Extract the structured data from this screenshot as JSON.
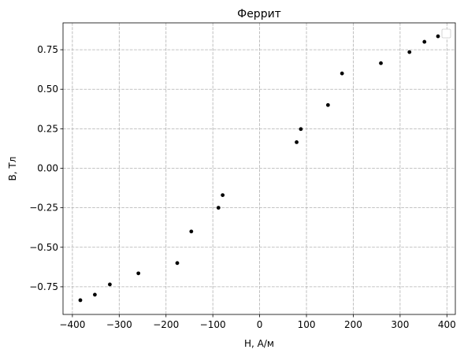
{
  "chart_data": {
    "type": "scatter",
    "title": "Феррит",
    "xlabel": "H, А/м",
    "ylabel": "B, Тл",
    "xlim": [
      -420,
      418
    ],
    "ylim": [
      -0.925,
      0.92
    ],
    "x_ticks": [
      -400,
      -300,
      -200,
      -100,
      0,
      100,
      200,
      300,
      400
    ],
    "x_tick_labels": [
      "−400",
      "−300",
      "−200",
      "−100",
      "0",
      "100",
      "200",
      "300",
      "400"
    ],
    "y_ticks": [
      -0.75,
      -0.5,
      -0.25,
      0,
      0.25,
      0.5,
      0.75
    ],
    "y_tick_labels": [
      "−0.75",
      "−0.50",
      "−0.25",
      "0.00",
      "0.25",
      "0.50",
      "0.75"
    ],
    "grid": true,
    "legend_placement": "upper right",
    "marker_color": "#000000",
    "series": [
      {
        "points": [
          {
            "x": -383,
            "y": -0.835
          },
          {
            "x": -352,
            "y": -0.8
          },
          {
            "x": -320,
            "y": -0.735
          },
          {
            "x": -259,
            "y": -0.665
          },
          {
            "x": -176,
            "y": -0.6
          },
          {
            "x": -146,
            "y": -0.4
          },
          {
            "x": -88,
            "y": -0.25
          },
          {
            "x": -79,
            "y": -0.17
          },
          {
            "x": 79,
            "y": 0.165
          },
          {
            "x": 88,
            "y": 0.248
          },
          {
            "x": 146,
            "y": 0.4
          },
          {
            "x": 176,
            "y": 0.6
          },
          {
            "x": 259,
            "y": 0.665
          },
          {
            "x": 320,
            "y": 0.735
          },
          {
            "x": 352,
            "y": 0.8
          },
          {
            "x": 381,
            "y": 0.835
          }
        ]
      }
    ]
  }
}
